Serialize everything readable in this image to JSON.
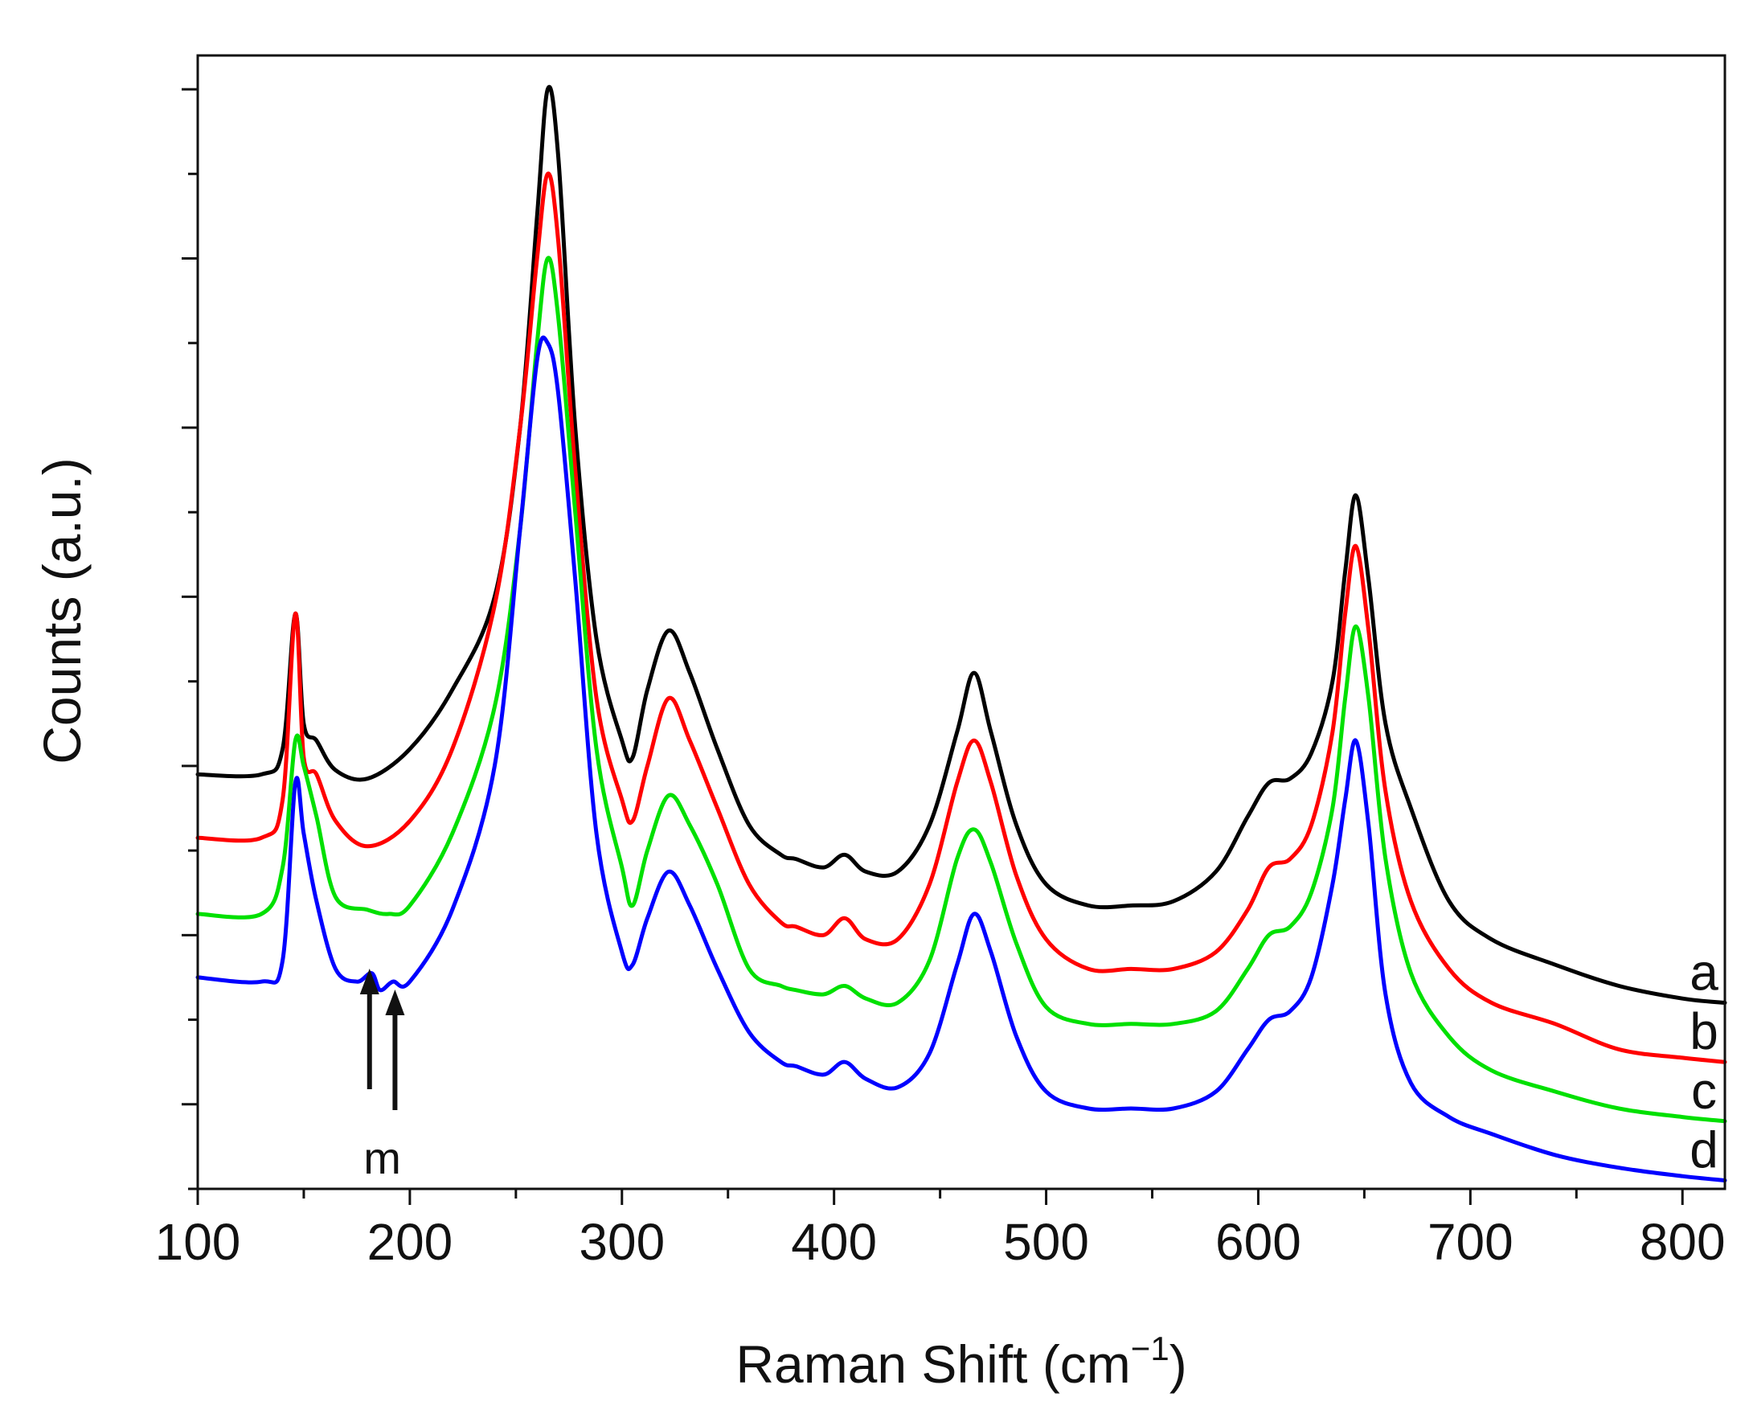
{
  "chart_data": {
    "type": "line",
    "title": "",
    "xlabel": "Raman Shift (cm",
    "xlabel_superscript": "−1",
    "xlabel_suffix": ")",
    "ylabel": "Counts (a.u.)",
    "xlim": [
      100,
      820
    ],
    "ylim": [
      0,
      13.4
    ],
    "x_ticks": [
      100,
      200,
      300,
      400,
      500,
      600,
      700,
      800
    ],
    "y_ticks": [
      1,
      3,
      5,
      7,
      9,
      11,
      13
    ],
    "y_tick_labels_shown": false,
    "grid": false,
    "legend": "none (labels at right end of each curve)",
    "series": [
      {
        "name": "a",
        "color": "#000000",
        "label": "a",
        "points": [
          [
            100,
            4.9
          ],
          [
            130,
            4.9
          ],
          [
            140,
            5.2
          ],
          [
            146,
            6.8
          ],
          [
            150,
            5.5
          ],
          [
            156,
            5.3
          ],
          [
            165,
            4.95
          ],
          [
            180,
            4.85
          ],
          [
            200,
            5.2
          ],
          [
            220,
            5.9
          ],
          [
            240,
            7.0
          ],
          [
            252,
            9.0
          ],
          [
            260,
            11.5
          ],
          [
            265,
            13.0
          ],
          [
            270,
            12.2
          ],
          [
            278,
            9.0
          ],
          [
            288,
            6.5
          ],
          [
            300,
            5.3
          ],
          [
            305,
            5.1
          ],
          [
            312,
            5.9
          ],
          [
            322,
            6.6
          ],
          [
            332,
            6.1
          ],
          [
            345,
            5.2
          ],
          [
            360,
            4.3
          ],
          [
            375,
            3.95
          ],
          [
            382,
            3.9
          ],
          [
            395,
            3.8
          ],
          [
            405,
            3.95
          ],
          [
            415,
            3.75
          ],
          [
            430,
            3.75
          ],
          [
            445,
            4.3
          ],
          [
            458,
            5.4
          ],
          [
            466,
            6.1
          ],
          [
            474,
            5.4
          ],
          [
            486,
            4.3
          ],
          [
            500,
            3.6
          ],
          [
            520,
            3.35
          ],
          [
            540,
            3.35
          ],
          [
            560,
            3.4
          ],
          [
            580,
            3.75
          ],
          [
            595,
            4.4
          ],
          [
            605,
            4.8
          ],
          [
            615,
            4.85
          ],
          [
            625,
            5.15
          ],
          [
            635,
            6.0
          ],
          [
            641,
            7.3
          ],
          [
            646,
            8.2
          ],
          [
            652,
            7.2
          ],
          [
            660,
            5.5
          ],
          [
            672,
            4.5
          ],
          [
            690,
            3.4
          ],
          [
            710,
            2.95
          ],
          [
            740,
            2.65
          ],
          [
            770,
            2.4
          ],
          [
            800,
            2.25
          ],
          [
            820,
            2.2
          ]
        ]
      },
      {
        "name": "b",
        "color": "#ff0000",
        "label": "b",
        "points": [
          [
            100,
            4.15
          ],
          [
            130,
            4.15
          ],
          [
            140,
            4.6
          ],
          [
            146,
            6.8
          ],
          [
            150,
            5.1
          ],
          [
            156,
            4.9
          ],
          [
            165,
            4.35
          ],
          [
            180,
            4.05
          ],
          [
            200,
            4.35
          ],
          [
            220,
            5.2
          ],
          [
            240,
            6.9
          ],
          [
            252,
            9.0
          ],
          [
            260,
            11.0
          ],
          [
            265,
            12.0
          ],
          [
            270,
            11.2
          ],
          [
            278,
            8.5
          ],
          [
            288,
            5.8
          ],
          [
            300,
            4.6
          ],
          [
            305,
            4.35
          ],
          [
            312,
            5.0
          ],
          [
            322,
            5.8
          ],
          [
            332,
            5.3
          ],
          [
            345,
            4.5
          ],
          [
            360,
            3.6
          ],
          [
            375,
            3.15
          ],
          [
            382,
            3.1
          ],
          [
            395,
            3.0
          ],
          [
            405,
            3.2
          ],
          [
            415,
            2.95
          ],
          [
            430,
            2.95
          ],
          [
            445,
            3.6
          ],
          [
            458,
            4.8
          ],
          [
            466,
            5.3
          ],
          [
            474,
            4.8
          ],
          [
            486,
            3.7
          ],
          [
            500,
            2.95
          ],
          [
            520,
            2.6
          ],
          [
            540,
            2.6
          ],
          [
            560,
            2.6
          ],
          [
            580,
            2.8
          ],
          [
            595,
            3.3
          ],
          [
            605,
            3.8
          ],
          [
            615,
            3.9
          ],
          [
            625,
            4.3
          ],
          [
            635,
            5.4
          ],
          [
            641,
            6.8
          ],
          [
            646,
            7.6
          ],
          [
            652,
            6.6
          ],
          [
            660,
            4.7
          ],
          [
            672,
            3.4
          ],
          [
            690,
            2.6
          ],
          [
            710,
            2.2
          ],
          [
            740,
            1.95
          ],
          [
            770,
            1.65
          ],
          [
            800,
            1.55
          ],
          [
            820,
            1.5
          ]
        ]
      },
      {
        "name": "c",
        "color": "#00e000",
        "label": "c",
        "points": [
          [
            100,
            3.25
          ],
          [
            130,
            3.25
          ],
          [
            140,
            3.8
          ],
          [
            146,
            5.3
          ],
          [
            150,
            5.0
          ],
          [
            156,
            4.4
          ],
          [
            165,
            3.45
          ],
          [
            180,
            3.3
          ],
          [
            190,
            3.25
          ],
          [
            200,
            3.35
          ],
          [
            220,
            4.2
          ],
          [
            240,
            5.7
          ],
          [
            252,
            7.8
          ],
          [
            260,
            10.0
          ],
          [
            265,
            11.0
          ],
          [
            270,
            10.3
          ],
          [
            278,
            8.0
          ],
          [
            288,
            5.2
          ],
          [
            300,
            3.8
          ],
          [
            305,
            3.35
          ],
          [
            312,
            4.0
          ],
          [
            322,
            4.65
          ],
          [
            332,
            4.3
          ],
          [
            345,
            3.6
          ],
          [
            360,
            2.6
          ],
          [
            375,
            2.4
          ],
          [
            382,
            2.35
          ],
          [
            395,
            2.3
          ],
          [
            405,
            2.4
          ],
          [
            415,
            2.25
          ],
          [
            430,
            2.2
          ],
          [
            445,
            2.7
          ],
          [
            458,
            3.9
          ],
          [
            466,
            4.25
          ],
          [
            474,
            3.85
          ],
          [
            486,
            2.9
          ],
          [
            500,
            2.15
          ],
          [
            520,
            1.95
          ],
          [
            540,
            1.95
          ],
          [
            560,
            1.95
          ],
          [
            580,
            2.1
          ],
          [
            595,
            2.6
          ],
          [
            605,
            3.0
          ],
          [
            615,
            3.1
          ],
          [
            625,
            3.5
          ],
          [
            635,
            4.5
          ],
          [
            641,
            5.8
          ],
          [
            646,
            6.65
          ],
          [
            652,
            5.8
          ],
          [
            660,
            3.9
          ],
          [
            672,
            2.55
          ],
          [
            690,
            1.8
          ],
          [
            710,
            1.4
          ],
          [
            740,
            1.15
          ],
          [
            770,
            0.95
          ],
          [
            800,
            0.85
          ],
          [
            820,
            0.8
          ]
        ]
      },
      {
        "name": "d",
        "color": "#0000ff",
        "label": "d",
        "points": [
          [
            100,
            2.5
          ],
          [
            130,
            2.45
          ],
          [
            140,
            2.7
          ],
          [
            146,
            4.8
          ],
          [
            150,
            4.2
          ],
          [
            156,
            3.4
          ],
          [
            165,
            2.6
          ],
          [
            175,
            2.45
          ],
          [
            182,
            2.55
          ],
          [
            186,
            2.35
          ],
          [
            192,
            2.45
          ],
          [
            200,
            2.45
          ],
          [
            220,
            3.3
          ],
          [
            240,
            5.0
          ],
          [
            252,
            7.8
          ],
          [
            260,
            9.8
          ],
          [
            265,
            10.0
          ],
          [
            270,
            9.4
          ],
          [
            278,
            7.2
          ],
          [
            288,
            4.2
          ],
          [
            300,
            2.8
          ],
          [
            305,
            2.65
          ],
          [
            312,
            3.2
          ],
          [
            322,
            3.75
          ],
          [
            332,
            3.35
          ],
          [
            345,
            2.6
          ],
          [
            360,
            1.85
          ],
          [
            375,
            1.5
          ],
          [
            382,
            1.45
          ],
          [
            395,
            1.35
          ],
          [
            405,
            1.5
          ],
          [
            415,
            1.3
          ],
          [
            430,
            1.2
          ],
          [
            445,
            1.6
          ],
          [
            458,
            2.65
          ],
          [
            466,
            3.25
          ],
          [
            474,
            2.8
          ],
          [
            486,
            1.8
          ],
          [
            500,
            1.15
          ],
          [
            520,
            0.95
          ],
          [
            540,
            0.95
          ],
          [
            560,
            0.95
          ],
          [
            580,
            1.15
          ],
          [
            595,
            1.65
          ],
          [
            605,
            2.0
          ],
          [
            615,
            2.1
          ],
          [
            625,
            2.5
          ],
          [
            635,
            3.6
          ],
          [
            641,
            4.6
          ],
          [
            646,
            5.3
          ],
          [
            652,
            4.3
          ],
          [
            660,
            2.3
          ],
          [
            672,
            1.25
          ],
          [
            690,
            0.85
          ],
          [
            710,
            0.65
          ],
          [
            740,
            0.4
          ],
          [
            770,
            0.25
          ],
          [
            800,
            0.15
          ],
          [
            820,
            0.1
          ]
        ]
      }
    ],
    "annotations": [
      {
        "text": "m",
        "arrows_at_x": [
          181,
          193
        ]
      }
    ]
  }
}
